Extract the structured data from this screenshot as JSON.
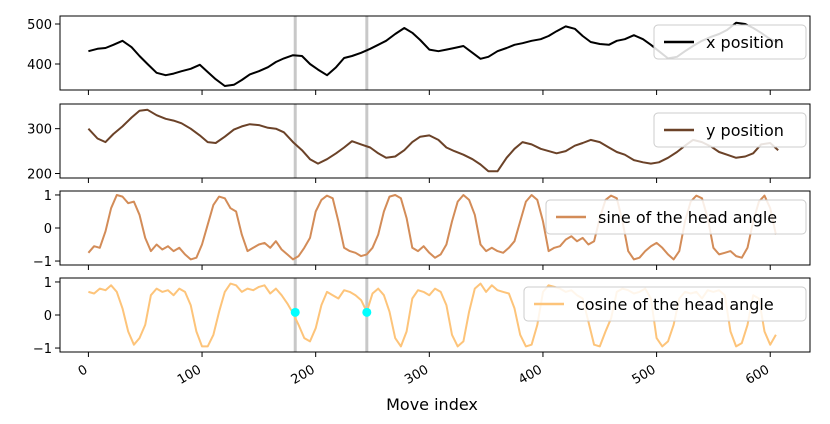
{
  "figure": {
    "xlabel": "Move index",
    "x_ticks": [
      "0",
      "100",
      "200",
      "300",
      "400",
      "500",
      "600"
    ],
    "x_tick_values": [
      0,
      100,
      200,
      300,
      400,
      500,
      600
    ],
    "xlim": [
      -25,
      635
    ],
    "marker_x": [
      182,
      245
    ],
    "marker_line_color": "#c8c8c8",
    "marker_point_color": "#00ffff"
  },
  "chart_data": [
    {
      "type": "line",
      "name": "x position",
      "color": "#000000",
      "ylim": [
        335,
        520
      ],
      "y_ticks": [
        "400",
        "500"
      ],
      "y_tick_values": [
        400,
        500
      ],
      "legend_position": "top-right",
      "x": [
        0,
        8,
        15,
        22,
        30,
        38,
        45,
        52,
        60,
        68,
        75,
        82,
        90,
        98,
        105,
        112,
        120,
        128,
        135,
        142,
        150,
        158,
        165,
        172,
        180,
        188,
        195,
        202,
        210,
        218,
        225,
        232,
        240,
        248,
        255,
        262,
        270,
        278,
        285,
        292,
        300,
        308,
        315,
        322,
        330,
        338,
        345,
        352,
        360,
        368,
        375,
        382,
        390,
        398,
        405,
        412,
        420,
        428,
        435,
        442,
        450,
        458,
        465,
        472,
        480,
        488,
        495,
        502,
        510,
        518,
        525,
        532,
        540,
        548,
        555,
        562,
        570,
        578,
        585,
        592,
        600,
        607
      ],
      "y": [
        432,
        438,
        440,
        448,
        458,
        442,
        420,
        400,
        378,
        372,
        376,
        382,
        388,
        398,
        380,
        362,
        345,
        348,
        360,
        374,
        382,
        392,
        405,
        414,
        422,
        420,
        400,
        386,
        372,
        392,
        415,
        420,
        428,
        438,
        448,
        458,
        475,
        490,
        478,
        460,
        436,
        432,
        436,
        440,
        445,
        428,
        413,
        418,
        432,
        440,
        448,
        452,
        458,
        462,
        470,
        482,
        494,
        488,
        470,
        455,
        450,
        448,
        458,
        462,
        472,
        462,
        448,
        432,
        414,
        418,
        432,
        445,
        458,
        468,
        475,
        485,
        503,
        500,
        490,
        478,
        462,
        454
      ]
    },
    {
      "type": "line",
      "name": "y position",
      "color": "#6b4228",
      "ylim": [
        190,
        355
      ],
      "y_ticks": [
        "200",
        "300"
      ],
      "y_tick_values": [
        200,
        300
      ],
      "legend_position": "top-right",
      "x": [
        0,
        8,
        15,
        22,
        30,
        38,
        45,
        52,
        60,
        68,
        75,
        82,
        90,
        98,
        105,
        112,
        120,
        128,
        135,
        142,
        150,
        158,
        165,
        172,
        180,
        188,
        195,
        202,
        210,
        218,
        225,
        232,
        240,
        248,
        255,
        262,
        270,
        278,
        285,
        292,
        300,
        308,
        315,
        322,
        330,
        338,
        345,
        352,
        360,
        368,
        375,
        382,
        390,
        398,
        405,
        412,
        420,
        428,
        435,
        442,
        450,
        458,
        465,
        472,
        480,
        488,
        495,
        502,
        510,
        518,
        525,
        532,
        540,
        548,
        555,
        562,
        570,
        578,
        585,
        592,
        600,
        607
      ],
      "y": [
        300,
        278,
        270,
        288,
        305,
        325,
        340,
        342,
        330,
        322,
        318,
        312,
        300,
        285,
        270,
        268,
        282,
        298,
        305,
        310,
        308,
        302,
        300,
        292,
        270,
        252,
        232,
        222,
        232,
        245,
        258,
        272,
        265,
        258,
        245,
        235,
        238,
        252,
        270,
        282,
        285,
        275,
        258,
        250,
        242,
        232,
        220,
        205,
        205,
        235,
        255,
        270,
        265,
        255,
        250,
        245,
        250,
        262,
        268,
        275,
        270,
        258,
        248,
        242,
        230,
        225,
        222,
        225,
        235,
        248,
        262,
        275,
        270,
        260,
        248,
        242,
        235,
        238,
        245,
        265,
        268,
        252
      ]
    },
    {
      "type": "line",
      "name": "sine of the head angle",
      "color": "#d38c58",
      "ylim": [
        -1.12,
        1.12
      ],
      "y_ticks": [
        "1",
        "0",
        "−1"
      ],
      "y_tick_values": [
        1,
        0,
        -1
      ],
      "legend_position": "top-right",
      "x": [
        0,
        5,
        10,
        15,
        20,
        25,
        30,
        35,
        40,
        45,
        50,
        55,
        60,
        65,
        70,
        75,
        80,
        85,
        90,
        95,
        100,
        105,
        110,
        115,
        120,
        125,
        130,
        135,
        140,
        145,
        150,
        155,
        160,
        165,
        170,
        175,
        180,
        185,
        190,
        195,
        200,
        205,
        210,
        215,
        220,
        225,
        230,
        235,
        240,
        245,
        250,
        255,
        260,
        265,
        270,
        275,
        280,
        285,
        290,
        295,
        300,
        305,
        310,
        315,
        320,
        325,
        330,
        335,
        340,
        345,
        350,
        355,
        360,
        365,
        370,
        375,
        380,
        385,
        390,
        395,
        400,
        405,
        410,
        415,
        420,
        425,
        430,
        435,
        440,
        445,
        450,
        455,
        460,
        465,
        470,
        475,
        480,
        485,
        490,
        495,
        500,
        505,
        510,
        515,
        520,
        525,
        530,
        535,
        540,
        545,
        550,
        555,
        560,
        565,
        570,
        575,
        580,
        585,
        590,
        595,
        600,
        605
      ],
      "y": [
        -0.75,
        -0.55,
        -0.6,
        -0.1,
        0.6,
        1.0,
        0.95,
        0.75,
        0.8,
        0.4,
        -0.3,
        -0.7,
        -0.5,
        -0.65,
        -0.55,
        -0.7,
        -0.6,
        -0.8,
        -0.95,
        -0.9,
        -0.5,
        0.1,
        0.7,
        0.95,
        0.9,
        0.6,
        0.5,
        -0.2,
        -0.7,
        -0.6,
        -0.5,
        -0.45,
        -0.6,
        -0.4,
        -0.65,
        -0.8,
        -0.95,
        -0.85,
        -0.6,
        -0.3,
        0.5,
        0.85,
        0.98,
        0.9,
        0.2,
        -0.6,
        -0.7,
        -0.75,
        -0.85,
        -0.8,
        -0.6,
        -0.2,
        0.5,
        0.95,
        1.0,
        0.9,
        0.3,
        -0.6,
        -0.7,
        -0.55,
        -0.75,
        -0.9,
        -0.8,
        -0.5,
        0.2,
        0.8,
        1.0,
        0.85,
        0.4,
        -0.5,
        -0.7,
        -0.6,
        -0.7,
        -0.75,
        -0.6,
        -0.4,
        0.2,
        0.8,
        1.0,
        0.85,
        0.2,
        -0.7,
        -0.6,
        -0.55,
        -0.35,
        -0.25,
        -0.4,
        -0.3,
        -0.5,
        -0.4,
        0.3,
        0.85,
        0.98,
        0.9,
        0.2,
        -0.7,
        -0.95,
        -0.9,
        -0.7,
        -0.55,
        -0.45,
        -0.6,
        -0.8,
        -0.95,
        -0.7,
        0.2,
        0.8,
        0.98,
        0.9,
        0.3,
        -0.6,
        -0.8,
        -0.75,
        -0.7,
        -0.85,
        -0.9,
        -0.6,
        0.2,
        0.8,
        0.98,
        0.6,
        -0.2
      ]
    },
    {
      "type": "line",
      "name": "cosine of the head angle",
      "color": "#fdc47a",
      "ylim": [
        -1.12,
        1.12
      ],
      "y_ticks": [
        "1",
        "0",
        "−1"
      ],
      "y_tick_values": [
        1,
        0,
        -1
      ],
      "legend_position": "top-right",
      "x": [
        0,
        5,
        10,
        15,
        20,
        25,
        30,
        35,
        40,
        45,
        50,
        55,
        60,
        65,
        70,
        75,
        80,
        85,
        90,
        95,
        100,
        105,
        110,
        115,
        120,
        125,
        130,
        135,
        140,
        145,
        150,
        155,
        160,
        165,
        170,
        175,
        180,
        185,
        190,
        195,
        200,
        205,
        210,
        215,
        220,
        225,
        230,
        235,
        240,
        245,
        250,
        255,
        260,
        265,
        270,
        275,
        280,
        285,
        290,
        295,
        300,
        305,
        310,
        315,
        320,
        325,
        330,
        335,
        340,
        345,
        350,
        355,
        360,
        365,
        370,
        375,
        380,
        385,
        390,
        395,
        400,
        405,
        410,
        415,
        420,
        425,
        430,
        435,
        440,
        445,
        450,
        455,
        460,
        465,
        470,
        475,
        480,
        485,
        490,
        495,
        500,
        505,
        510,
        515,
        520,
        525,
        530,
        535,
        540,
        545,
        550,
        555,
        560,
        565,
        570,
        575,
        580,
        585,
        590,
        595,
        600,
        605
      ],
      "y": [
        0.7,
        0.65,
        0.8,
        0.75,
        0.9,
        0.7,
        0.2,
        -0.5,
        -0.9,
        -0.7,
        -0.3,
        0.6,
        0.8,
        0.7,
        0.75,
        0.6,
        0.8,
        0.7,
        0.3,
        -0.5,
        -0.95,
        -0.95,
        -0.6,
        0.1,
        0.7,
        0.95,
        0.9,
        0.7,
        0.8,
        0.75,
        0.85,
        0.9,
        0.65,
        0.8,
        0.6,
        0.35,
        0.05,
        -0.3,
        -0.7,
        -0.8,
        -0.4,
        0.3,
        0.7,
        0.6,
        0.5,
        0.75,
        0.7,
        0.6,
        0.45,
        0.1,
        0.65,
        0.8,
        0.6,
        0.1,
        -0.7,
        -0.95,
        -0.5,
        0.5,
        0.75,
        0.7,
        0.6,
        0.8,
        0.7,
        0.3,
        -0.6,
        -0.95,
        -0.8,
        0.1,
        0.8,
        0.95,
        0.7,
        0.9,
        0.75,
        0.7,
        0.65,
        0.2,
        -0.6,
        -0.95,
        -0.9,
        -0.3,
        0.7,
        0.9,
        0.85,
        0.8,
        0.7,
        0.75,
        0.6,
        0.5,
        -0.2,
        -0.9,
        -0.95,
        -0.5,
        -0.1,
        0.7,
        0.8,
        0.75,
        0.65,
        0.7,
        0.8,
        0.5,
        -0.7,
        -0.95,
        -0.8,
        -0.3,
        0.5,
        0.7,
        0.65,
        0.7,
        0.5,
        0.75,
        0.7,
        0.75,
        0.6,
        -0.5,
        -0.95,
        -0.85,
        -0.3,
        0.6,
        0.5,
        -0.5,
        -0.9,
        -0.6
      ]
    }
  ]
}
